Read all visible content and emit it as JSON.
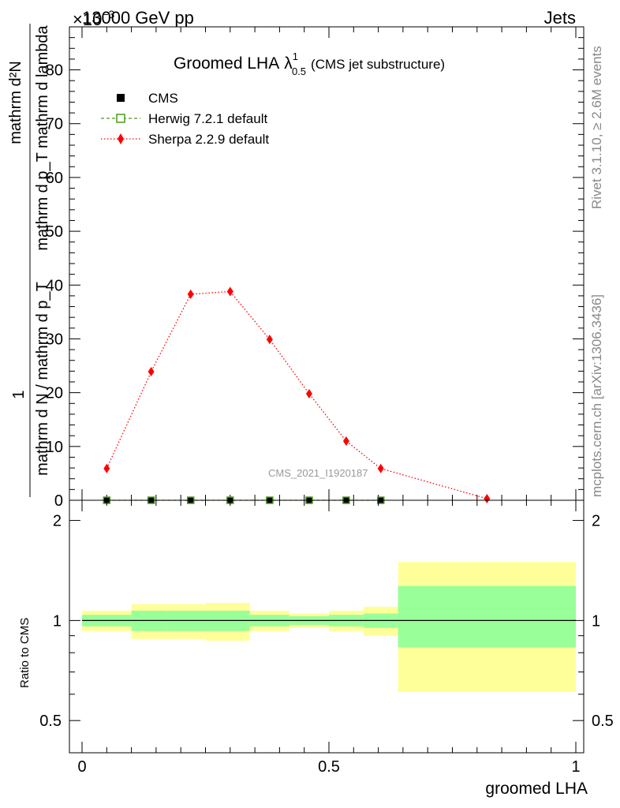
{
  "header": {
    "energy": "13000 GeV pp",
    "exponent": "×10",
    "exponent_power": "−3",
    "category": "Jets"
  },
  "side": {
    "rivet": "Rivet 3.1.10, ≥ 2.6M events",
    "source": "mcplots.cern.ch [arXiv:1306.3436]"
  },
  "watermark": "CMS_2021_I1920187",
  "chart_data": {
    "type": "line",
    "title": {
      "main": "Groomed LHA",
      "symbol": "λ",
      "superscript": "1",
      "subscript": "0.5",
      "note": "(CMS jet substructure)"
    },
    "ylabel": {
      "prefix": "1",
      "fraction_numerator": "mathrm d N / mathrm d p_T",
      "fraction_denominator_prefix": "mathrm d p_T",
      "numerator": "mathrm d²N",
      "denominator": "mathrm d p_T mathrm d lambda"
    },
    "xlabel": "groomed LHA",
    "ratio_ylabel": "Ratio to CMS",
    "xlim": [
      0,
      1
    ],
    "ylim": [
      0,
      88
    ],
    "ratio_ylim": [
      0.4,
      2.3
    ],
    "x_ticks": [
      "0",
      "0.5",
      "1"
    ],
    "y_ticks": [
      "0",
      "10",
      "20",
      "30",
      "40",
      "50",
      "60",
      "70",
      "80"
    ],
    "ratio_ticks": [
      "0.5",
      "1",
      "2"
    ],
    "legend": [
      {
        "name": "CMS",
        "marker": "square",
        "color": "#000000"
      },
      {
        "name": "Herwig 7.2.1 default",
        "marker": "open-square",
        "color": "#4a9a1a"
      },
      {
        "name": "Sherpa 2.2.9 default",
        "marker": "diamond",
        "color": "#ff0000"
      }
    ],
    "bin_edges": [
      0,
      0.1,
      0.17,
      0.25,
      0.34,
      0.42,
      0.5,
      0.57,
      0.64,
      1.0
    ],
    "series": [
      {
        "name": "CMS",
        "x": [
          0.05,
          0.14,
          0.22,
          0.3,
          0.38,
          0.46,
          0.535,
          0.605
        ],
        "y": [
          0,
          0,
          0,
          0,
          0,
          0,
          0,
          0
        ]
      },
      {
        "name": "Herwig 7.2.1 default",
        "x": [
          0.05,
          0.14,
          0.22,
          0.3,
          0.38,
          0.46,
          0.535,
          0.605
        ],
        "y": [
          0,
          0,
          0,
          0,
          0,
          0,
          0,
          0
        ]
      },
      {
        "name": "Sherpa 2.2.9 default",
        "x": [
          0.05,
          0.14,
          0.22,
          0.3,
          0.38,
          0.46,
          0.535,
          0.605,
          0.82
        ],
        "y": [
          5.9,
          23.9,
          38.3,
          38.8,
          29.9,
          19.8,
          11.0,
          5.9,
          0.3
        ]
      }
    ],
    "ratio_bands": {
      "yellow_lo": [
        0.93,
        0.88,
        0.88,
        0.87,
        0.93,
        0.95,
        0.93,
        0.9,
        0.61
      ],
      "yellow_hi": [
        1.07,
        1.12,
        1.12,
        1.13,
        1.07,
        1.05,
        1.07,
        1.1,
        1.5
      ],
      "green_lo": [
        0.96,
        0.93,
        0.93,
        0.93,
        0.96,
        0.97,
        0.96,
        0.95,
        0.83
      ],
      "green_hi": [
        1.04,
        1.07,
        1.07,
        1.07,
        1.04,
        1.03,
        1.04,
        1.05,
        1.27
      ]
    }
  }
}
